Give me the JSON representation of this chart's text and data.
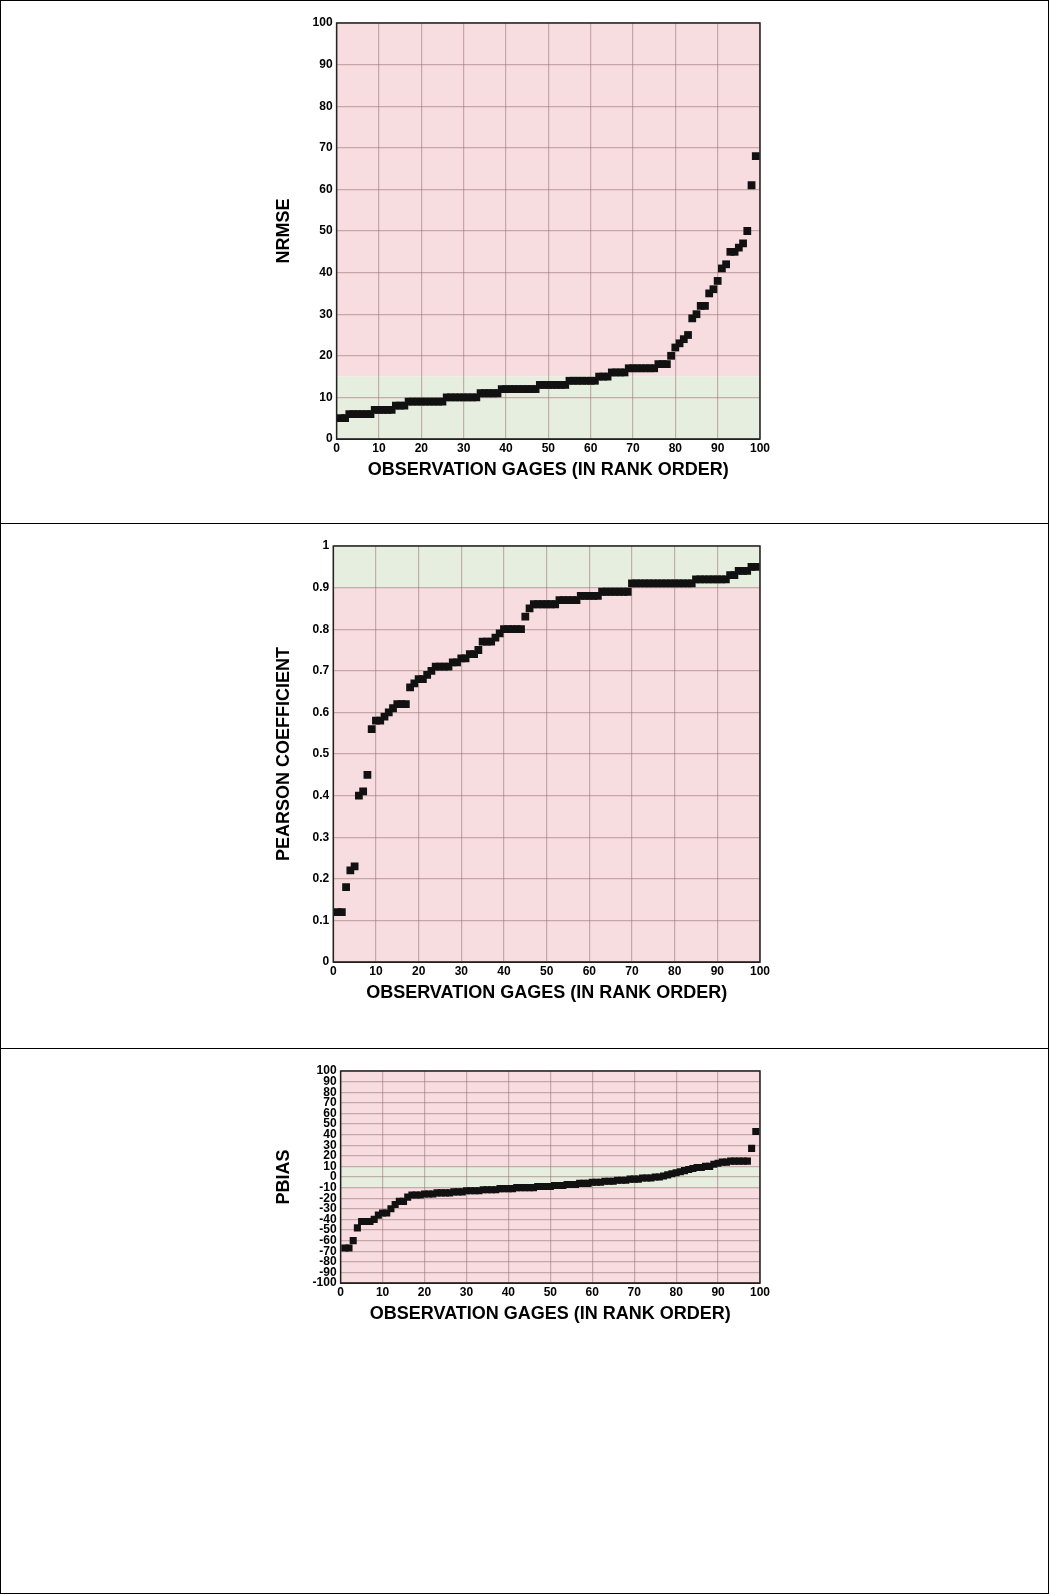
{
  "chart_data": [
    {
      "type": "scatter",
      "ylabel": "NRMSE",
      "xlabel": "OBSERVATION GAGES (IN RANK ORDER)",
      "marker": "square",
      "color": "#111111",
      "grid": true,
      "x": [
        1,
        2,
        3,
        4,
        5,
        6,
        7,
        8,
        9,
        10,
        11,
        12,
        13,
        14,
        15,
        16,
        17,
        18,
        19,
        20,
        21,
        22,
        23,
        24,
        25,
        26,
        27,
        28,
        29,
        30,
        31,
        32,
        33,
        34,
        35,
        36,
        37,
        38,
        39,
        40,
        41,
        42,
        43,
        44,
        45,
        46,
        47,
        48,
        49,
        50,
        51,
        52,
        53,
        54,
        55,
        56,
        57,
        58,
        59,
        60,
        61,
        62,
        63,
        64,
        65,
        66,
        67,
        68,
        69,
        70,
        71,
        72,
        73,
        74,
        75,
        76,
        77,
        78,
        79,
        80,
        81,
        82,
        83,
        84,
        85,
        86,
        87,
        88,
        89,
        90,
        91,
        92,
        93,
        94,
        95,
        96,
        97,
        98,
        99
      ],
      "values": [
        5,
        5,
        6,
        6,
        6,
        6,
        6,
        6,
        7,
        7,
        7,
        7,
        7,
        8,
        8,
        8,
        9,
        9,
        9,
        9,
        9,
        9,
        9,
        9,
        9,
        10,
        10,
        10,
        10,
        10,
        10,
        10,
        10,
        11,
        11,
        11,
        11,
        11,
        12,
        12,
        12,
        12,
        12,
        12,
        12,
        12,
        12,
        13,
        13,
        13,
        13,
        13,
        13,
        13,
        14,
        14,
        14,
        14,
        14,
        14,
        14,
        15,
        15,
        15,
        16,
        16,
        16,
        16,
        17,
        17,
        17,
        17,
        17,
        17,
        17,
        18,
        18,
        18,
        20,
        22,
        23,
        24,
        25,
        29,
        30,
        32,
        32,
        35,
        36,
        38,
        41,
        42,
        45,
        45,
        46,
        47,
        50,
        61,
        68
      ],
      "xlim": [
        0,
        100
      ],
      "xticks": [
        0,
        10,
        20,
        30,
        40,
        50,
        60,
        70,
        80,
        90,
        100
      ],
      "ylim": [
        0,
        100
      ],
      "yticks": [
        0,
        10,
        20,
        30,
        40,
        50,
        60,
        70,
        80,
        90,
        100
      ],
      "bands": [
        {
          "axis": "y",
          "from": 15,
          "to": 100,
          "color": "#f7dde0"
        },
        {
          "axis": "y",
          "from": 0,
          "to": 15,
          "color": "#e6efdf"
        }
      ]
    },
    {
      "type": "scatter",
      "ylabel": "PEARSON COEFFICIENT",
      "xlabel": "OBSERVATION GAGES (IN RANK ORDER)",
      "marker": "square",
      "color": "#111111",
      "grid": true,
      "x": [
        1,
        2,
        3,
        4,
        5,
        6,
        7,
        8,
        9,
        10,
        11,
        12,
        13,
        14,
        15,
        16,
        17,
        18,
        19,
        20,
        21,
        22,
        23,
        24,
        25,
        26,
        27,
        28,
        29,
        30,
        31,
        32,
        33,
        34,
        35,
        36,
        37,
        38,
        39,
        40,
        41,
        42,
        43,
        44,
        45,
        46,
        47,
        48,
        49,
        50,
        51,
        52,
        53,
        54,
        55,
        56,
        57,
        58,
        59,
        60,
        61,
        62,
        63,
        64,
        65,
        66,
        67,
        68,
        69,
        70,
        71,
        72,
        73,
        74,
        75,
        76,
        77,
        78,
        79,
        80,
        81,
        82,
        83,
        84,
        85,
        86,
        87,
        88,
        89,
        90,
        91,
        92,
        93,
        94,
        95,
        96,
        97,
        98,
        99
      ],
      "values": [
        0.12,
        0.12,
        0.18,
        0.22,
        0.23,
        0.4,
        0.41,
        0.45,
        0.56,
        0.58,
        0.58,
        0.59,
        0.6,
        0.61,
        0.62,
        0.62,
        0.62,
        0.66,
        0.67,
        0.68,
        0.68,
        0.69,
        0.7,
        0.71,
        0.71,
        0.71,
        0.71,
        0.72,
        0.72,
        0.73,
        0.73,
        0.74,
        0.74,
        0.75,
        0.77,
        0.77,
        0.77,
        0.78,
        0.79,
        0.8,
        0.8,
        0.8,
        0.8,
        0.8,
        0.83,
        0.85,
        0.86,
        0.86,
        0.86,
        0.86,
        0.86,
        0.86,
        0.87,
        0.87,
        0.87,
        0.87,
        0.87,
        0.88,
        0.88,
        0.88,
        0.88,
        0.88,
        0.89,
        0.89,
        0.89,
        0.89,
        0.89,
        0.89,
        0.89,
        0.91,
        0.91,
        0.91,
        0.91,
        0.91,
        0.91,
        0.91,
        0.91,
        0.91,
        0.91,
        0.91,
        0.91,
        0.91,
        0.91,
        0.91,
        0.92,
        0.92,
        0.92,
        0.92,
        0.92,
        0.92,
        0.92,
        0.92,
        0.93,
        0.93,
        0.94,
        0.94,
        0.94,
        0.95,
        0.95
      ],
      "xlim": [
        0,
        100
      ],
      "xticks": [
        0,
        10,
        20,
        30,
        40,
        50,
        60,
        70,
        80,
        90,
        100
      ],
      "ylim": [
        0,
        1
      ],
      "yticks": [
        0,
        0.1,
        0.2,
        0.3,
        0.4,
        0.5,
        0.6,
        0.7,
        0.8,
        0.9,
        1
      ],
      "bands": [
        {
          "axis": "y",
          "from": 0,
          "to": 0.9,
          "color": "#f7dde0"
        },
        {
          "axis": "y",
          "from": 0.9,
          "to": 1,
          "color": "#e6efdf"
        }
      ]
    },
    {
      "type": "scatter",
      "ylabel": "PBIAS",
      "xlabel": "OBSERVATION GAGES (IN RANK ORDER)",
      "marker": "square",
      "color": "#111111",
      "grid": true,
      "x": [
        1,
        2,
        3,
        4,
        5,
        6,
        7,
        8,
        9,
        10,
        11,
        12,
        13,
        14,
        15,
        16,
        17,
        18,
        19,
        20,
        21,
        22,
        23,
        24,
        25,
        26,
        27,
        28,
        29,
        30,
        31,
        32,
        33,
        34,
        35,
        36,
        37,
        38,
        39,
        40,
        41,
        42,
        43,
        44,
        45,
        46,
        47,
        48,
        49,
        50,
        51,
        52,
        53,
        54,
        55,
        56,
        57,
        58,
        59,
        60,
        61,
        62,
        63,
        64,
        65,
        66,
        67,
        68,
        69,
        70,
        71,
        72,
        73,
        74,
        75,
        76,
        77,
        78,
        79,
        80,
        81,
        82,
        83,
        84,
        85,
        86,
        87,
        88,
        89,
        90,
        91,
        92,
        93,
        94,
        95,
        96,
        97,
        98,
        99
      ],
      "values": [
        -67,
        -67,
        -60,
        -48,
        -42,
        -42,
        -42,
        -40,
        -36,
        -34,
        -34,
        -30,
        -26,
        -23,
        -23,
        -19,
        -17,
        -17,
        -17,
        -16,
        -16,
        -16,
        -15,
        -15,
        -15,
        -15,
        -14,
        -14,
        -14,
        -13,
        -13,
        -13,
        -13,
        -12,
        -12,
        -12,
        -12,
        -11,
        -11,
        -11,
        -11,
        -10,
        -10,
        -10,
        -10,
        -10,
        -9,
        -9,
        -9,
        -9,
        -8,
        -8,
        -8,
        -7,
        -7,
        -7,
        -6,
        -6,
        -6,
        -5,
        -5,
        -5,
        -4,
        -4,
        -4,
        -3,
        -3,
        -3,
        -2,
        -2,
        -2,
        -1,
        -1,
        -1,
        0,
        0,
        1,
        2,
        3,
        4,
        5,
        6,
        7,
        8,
        9,
        9,
        10,
        10,
        12,
        13,
        14,
        14,
        15,
        15,
        15,
        15,
        15,
        27,
        43
      ],
      "xlim": [
        0,
        100
      ],
      "xticks": [
        0,
        10,
        20,
        30,
        40,
        50,
        60,
        70,
        80,
        90,
        100
      ],
      "ylim": [
        -100,
        100
      ],
      "yticks": [
        -100,
        -90,
        -80,
        -70,
        -60,
        -50,
        -40,
        -30,
        -20,
        -10,
        0,
        10,
        20,
        30,
        40,
        50,
        60,
        70,
        80,
        90,
        100
      ],
      "bands": [
        {
          "axis": "y",
          "from": 10,
          "to": 100,
          "color": "#f7dde0"
        },
        {
          "axis": "y",
          "from": -100,
          "to": -10,
          "color": "#f7dde0"
        },
        {
          "axis": "y",
          "from": -10,
          "to": 10,
          "color": "#e6efdf"
        }
      ]
    }
  ]
}
